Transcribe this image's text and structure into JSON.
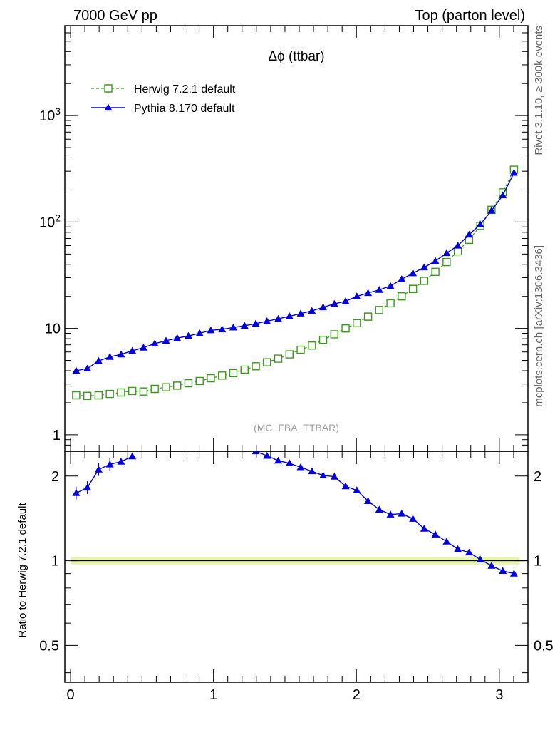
{
  "header": {
    "left": "7000 GeV pp",
    "right": "Top (parton level)"
  },
  "side_labels": {
    "rivet": "Rivet 3.1.10, ≥ 300k events",
    "mcplots": "mcplots.cern.ch [arXiv:1306.3436]"
  },
  "colors": {
    "herwig": "#3a9a1a",
    "pythia": "#0000dd",
    "band": "#e6f5a0"
  },
  "chart_data": [
    {
      "type": "line",
      "title": "Δϕ (ttbar)",
      "annotation": "(MC_FBA_TTBAR)",
      "xlim": [
        -0.04,
        3.2
      ],
      "ylim": [
        0.7,
        7000
      ],
      "yscale": "log",
      "yticks": [
        {
          "value": 1,
          "label": "1"
        },
        {
          "value": 10,
          "label": "10"
        },
        {
          "value": 100,
          "label": "10^2"
        },
        {
          "value": 1000,
          "label": "10^3"
        }
      ],
      "legend_position": "top-left",
      "x": [
        0.0393,
        0.1178,
        0.1963,
        0.2749,
        0.3534,
        0.432,
        0.5105,
        0.589,
        0.6676,
        0.7461,
        0.8247,
        0.9032,
        0.9817,
        1.0603,
        1.1388,
        1.2174,
        1.2959,
        1.3744,
        1.453,
        1.5315,
        1.6101,
        1.6886,
        1.7671,
        1.8457,
        1.9242,
        2.0028,
        2.0813,
        2.1598,
        2.2384,
        2.3169,
        2.3955,
        2.474,
        2.5525,
        2.6311,
        2.7096,
        2.7882,
        2.8667,
        2.9452,
        3.0238,
        3.1023
      ],
      "series": [
        {
          "name": "Herwig 7.2.1 default",
          "marker": "open-square",
          "line": "dashed",
          "values": [
            2.35,
            2.32,
            2.35,
            2.42,
            2.5,
            2.58,
            2.55,
            2.7,
            2.8,
            2.9,
            3.05,
            3.2,
            3.4,
            3.6,
            3.8,
            4.1,
            4.4,
            4.8,
            5.2,
            5.7,
            6.3,
            6.9,
            7.8,
            8.8,
            10.0,
            11.2,
            12.9,
            14.9,
            17.2,
            20.0,
            23.5,
            28.0,
            34.0,
            42.0,
            53.0,
            68.0,
            92.0,
            130.0,
            190.0,
            310.0
          ]
        },
        {
          "name": "Pythia 8.170 default",
          "marker": "filled-triangle",
          "line": "solid",
          "values": [
            4.0,
            4.2,
            4.95,
            5.4,
            5.7,
            6.15,
            6.6,
            7.2,
            7.65,
            8.1,
            8.5,
            9.0,
            9.6,
            9.8,
            10.2,
            10.6,
            11.1,
            11.7,
            12.3,
            13.0,
            13.8,
            14.6,
            15.8,
            17.0,
            18.0,
            20.0,
            21.5,
            23.0,
            25.0,
            29.0,
            33.0,
            37.5,
            43.0,
            51.0,
            60.0,
            76.0,
            95.0,
            128.0,
            178.0,
            290.0
          ]
        }
      ]
    },
    {
      "type": "line",
      "ylabel": "Ratio to Herwig 7.2.1 default",
      "xlim": [
        -0.04,
        3.2
      ],
      "ylim": [
        0.37,
        2.45
      ],
      "yscale": "log",
      "xticks": [
        {
          "value": 0,
          "label": "0"
        },
        {
          "value": 1,
          "label": "1"
        },
        {
          "value": 2,
          "label": "2"
        },
        {
          "value": 3,
          "label": "3"
        }
      ],
      "yticks": [
        {
          "value": 0.5,
          "label": "0.5"
        },
        {
          "value": 1,
          "label": "1"
        },
        {
          "value": 2,
          "label": "2"
        }
      ],
      "reference_line": 1,
      "x": [
        0.0393,
        0.1178,
        0.1963,
        0.2749,
        0.3534,
        0.432,
        1.2959,
        1.3744,
        1.453,
        1.5315,
        1.6101,
        1.6886,
        1.7671,
        1.8457,
        1.9242,
        2.0028,
        2.0813,
        2.1598,
        2.2384,
        2.3169,
        2.3955,
        2.474,
        2.5525,
        2.6311,
        2.7096,
        2.7882,
        2.8667,
        2.9452,
        3.0238,
        3.1023
      ],
      "series": [
        {
          "name": "Pythia 8.170 default",
          "marker": "filled-triangle",
          "values": [
            1.74,
            1.82,
            2.11,
            2.2,
            2.25,
            2.35,
            2.45,
            2.36,
            2.27,
            2.22,
            2.15,
            2.08,
            2.01,
            1.99,
            1.84,
            1.78,
            1.63,
            1.52,
            1.46,
            1.47,
            1.41,
            1.3,
            1.24,
            1.17,
            1.1,
            1.07,
            1.01,
            0.96,
            0.92,
            0.9
          ]
        }
      ]
    }
  ]
}
